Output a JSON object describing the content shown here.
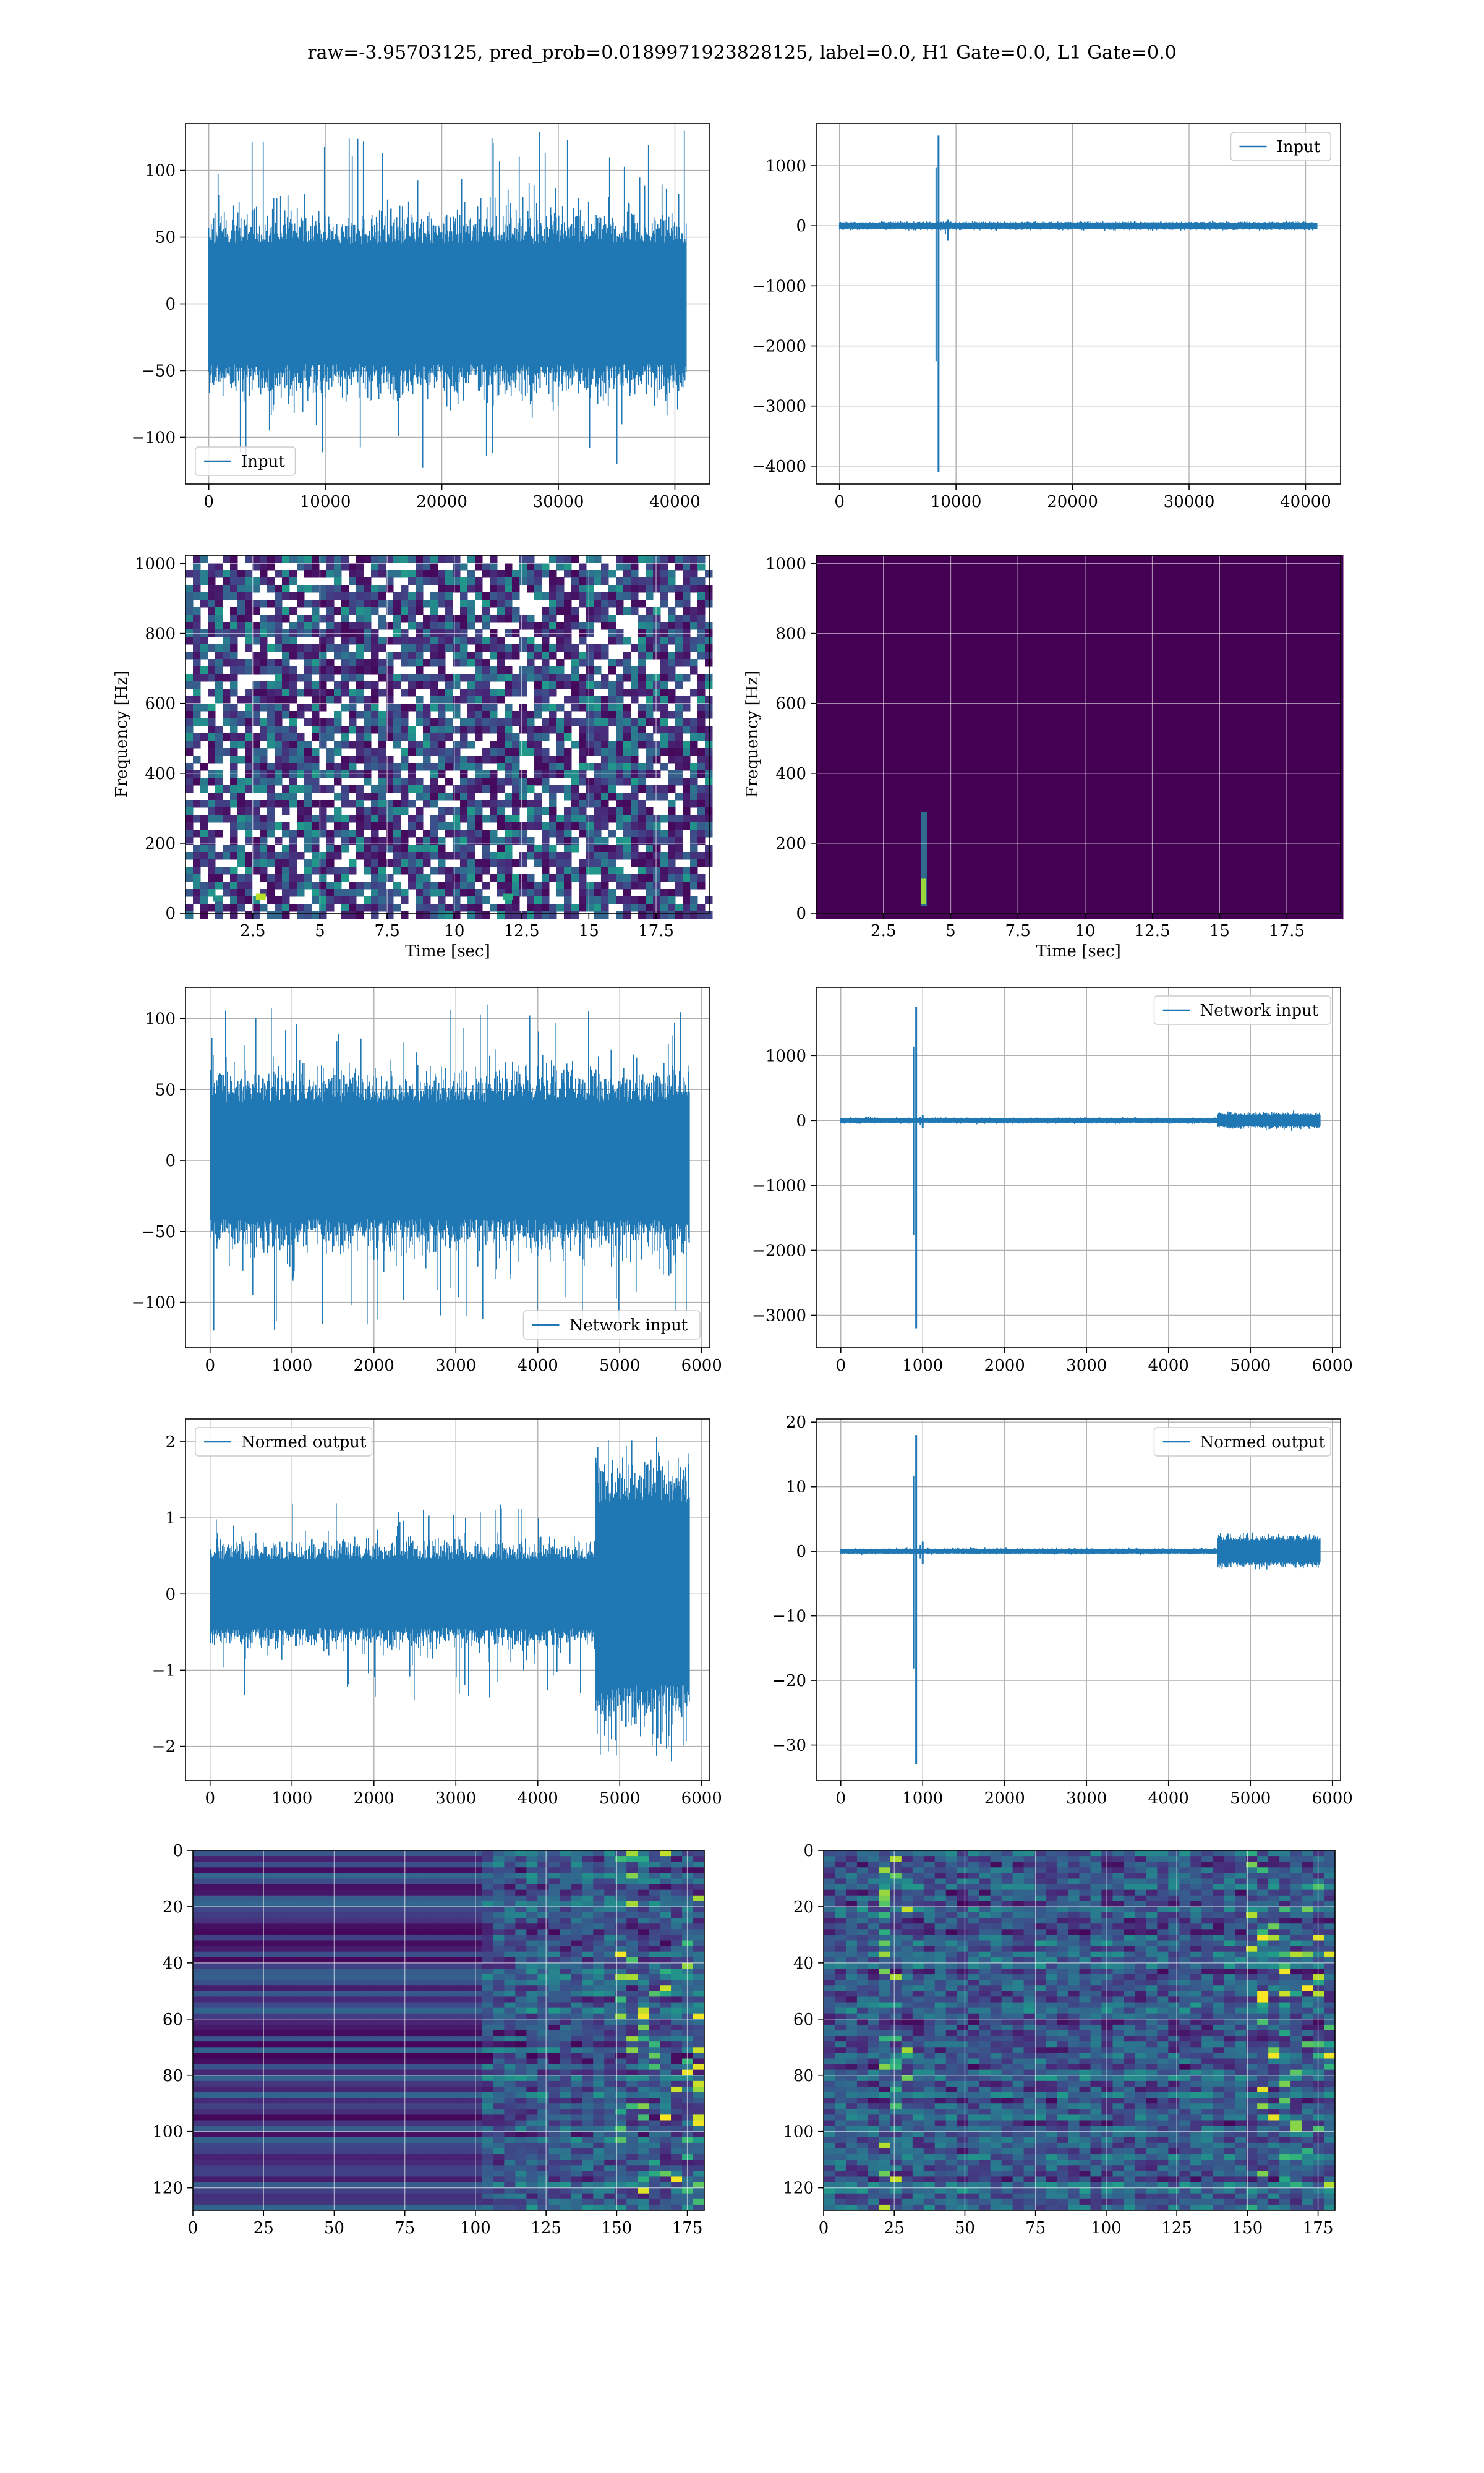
{
  "figure": {
    "title": "raw=-3.95703125, pred_prob=0.0189971923828125, label=0.0, H1 Gate=0.0, L1 Gate=0.0",
    "colors": {
      "line": "#1f77b4",
      "viridis_dark": "#440154",
      "viridis_mid": "#21918c",
      "viridis_bright": "#fde725",
      "grid": "#b0b0b0"
    }
  },
  "chart_data": [
    {
      "id": "input-h1",
      "type": "line",
      "title": "",
      "xlabel": "",
      "ylabel": "",
      "xlim": [
        -2000,
        43000
      ],
      "ylim": [
        -135,
        135
      ],
      "xticks": [
        0,
        10000,
        20000,
        30000,
        40000
      ],
      "yticks": [
        -100,
        -50,
        0,
        50,
        100
      ],
      "legend": {
        "label": "Input",
        "position": "lower-left"
      },
      "grid": true,
      "series": [
        {
          "name": "Input",
          "kind": "noise",
          "x_range": [
            0,
            40960
          ],
          "typical_amplitude": 60,
          "peak_max": 130,
          "peak_min": -125
        }
      ]
    },
    {
      "id": "input-l1",
      "type": "line",
      "title": "",
      "xlabel": "",
      "ylabel": "",
      "xlim": [
        -2000,
        43000
      ],
      "ylim": [
        -4300,
        1700
      ],
      "xticks": [
        0,
        10000,
        20000,
        30000,
        40000
      ],
      "yticks": [
        -4000,
        -3000,
        -2000,
        -1000,
        0,
        1000
      ],
      "legend": {
        "label": "Input",
        "position": "top-right"
      },
      "grid": true,
      "series": [
        {
          "name": "Input",
          "kind": "noise",
          "x_range": [
            0,
            40960
          ],
          "typical_amplitude": 60,
          "spikes": [
            {
              "x": 8500,
              "max": 1500,
              "min": -4100
            },
            {
              "x": 9300,
              "max": 100,
              "min": -250
            }
          ]
        }
      ]
    },
    {
      "id": "spectrogram-h1",
      "type": "heatmap",
      "title": "",
      "xlabel": "Time [sec]",
      "ylabel": "Frequency [Hz]",
      "xlim": [
        0,
        19.5
      ],
      "ylim": [
        0,
        1024
      ],
      "xticks": [
        2.5,
        5.0,
        7.5,
        10.0,
        12.5,
        15.0,
        17.5
      ],
      "yticks": [
        0,
        200,
        400,
        600,
        800,
        1000
      ],
      "colormap": "viridis",
      "grid": true,
      "description": "uniform low-power noise with scattered speckles",
      "hotspots": [
        {
          "t": 2.8,
          "f": 45,
          "level": 0.9
        },
        {
          "t": 12.0,
          "f": 45,
          "level": 0.6
        },
        {
          "t": 1.2,
          "f": 40,
          "level": 0.5
        }
      ]
    },
    {
      "id": "spectrogram-l1",
      "type": "heatmap",
      "title": "",
      "xlabel": "Time [sec]",
      "ylabel": "Frequency [Hz]",
      "xlim": [
        0,
        19.5
      ],
      "ylim": [
        0,
        1024
      ],
      "xticks": [
        2.5,
        5.0,
        7.5,
        10.0,
        12.5,
        15.0,
        17.5
      ],
      "yticks": [
        0,
        200,
        400,
        600,
        800,
        1000
      ],
      "colormap": "viridis",
      "grid": true,
      "description": "dark background with single bright glitch",
      "hotspots": [
        {
          "t": 4.0,
          "f": 40,
          "level": 1.0,
          "f_extent": 250
        }
      ]
    },
    {
      "id": "network-input-h1",
      "type": "line",
      "title": "",
      "xlabel": "",
      "ylabel": "",
      "xlim": [
        -300,
        6100
      ],
      "ylim": [
        -132,
        122
      ],
      "xticks": [
        0,
        1000,
        2000,
        3000,
        4000,
        5000,
        6000
      ],
      "yticks": [
        -100,
        -50,
        0,
        50,
        100
      ],
      "legend": {
        "label": "Network input",
        "position": "lower-right"
      },
      "grid": true,
      "series": [
        {
          "name": "Network input",
          "kind": "noise",
          "x_range": [
            0,
            5850
          ],
          "typical_amplitude": 55,
          "peak_max": 110,
          "peak_min": -120
        }
      ]
    },
    {
      "id": "network-input-l1",
      "type": "line",
      "title": "",
      "xlabel": "",
      "ylabel": "",
      "xlim": [
        -300,
        6100
      ],
      "ylim": [
        -3500,
        2050
      ],
      "xticks": [
        0,
        1000,
        2000,
        3000,
        4000,
        5000,
        6000
      ],
      "yticks": [
        -3000,
        -2000,
        -1000,
        0,
        1000
      ],
      "legend": {
        "label": "Network input",
        "position": "top-right"
      },
      "grid": true,
      "series": [
        {
          "name": "Network input",
          "kind": "noise",
          "x_range": [
            0,
            5850
          ],
          "typical_amplitude": 40,
          "spikes": [
            {
              "x": 920,
              "max": 1750,
              "min": -3200
            },
            {
              "x": 1000,
              "max": 80,
              "min": -120
            }
          ],
          "late_burst": {
            "x_range": [
              4600,
              5850
            ],
            "amplitude": 110
          }
        }
      ]
    },
    {
      "id": "normed-output-h1",
      "type": "line",
      "title": "",
      "xlabel": "",
      "ylabel": "",
      "xlim": [
        -300,
        6100
      ],
      "ylim": [
        -2.45,
        2.3
      ],
      "xticks": [
        0,
        1000,
        2000,
        3000,
        4000,
        5000,
        6000
      ],
      "yticks": [
        -2,
        -1,
        0,
        1,
        2
      ],
      "legend": {
        "label": "Normed output",
        "position": "top-left"
      },
      "grid": true,
      "series": [
        {
          "name": "Normed output",
          "kind": "noise",
          "x_range": [
            0,
            5850
          ],
          "typical_amplitude": 0.6,
          "peak_max": 1.2,
          "peak_min": -1.4,
          "late_burst": {
            "x_range": [
              4700,
              5850
            ],
            "amplitude": 1.6,
            "peak_max": 2.1,
            "peak_min": -2.2
          }
        }
      ]
    },
    {
      "id": "normed-output-l1",
      "type": "line",
      "title": "",
      "xlabel": "",
      "ylabel": "",
      "xlim": [
        -300,
        6100
      ],
      "ylim": [
        -35.5,
        20.5
      ],
      "xticks": [
        0,
        1000,
        2000,
        3000,
        4000,
        5000,
        6000
      ],
      "yticks": [
        -30,
        -20,
        -10,
        0,
        10,
        20
      ],
      "legend": {
        "label": "Normed output",
        "position": "top-right"
      },
      "grid": true,
      "series": [
        {
          "name": "Normed output",
          "kind": "noise",
          "x_range": [
            0,
            5850
          ],
          "typical_amplitude": 0.4,
          "spikes": [
            {
              "x": 920,
              "max": 18,
              "min": -33
            },
            {
              "x": 1000,
              "max": 1.5,
              "min": -2
            }
          ],
          "late_burst": {
            "x_range": [
              4600,
              5850
            ],
            "amplitude": 2.2
          }
        }
      ]
    },
    {
      "id": "features-h1",
      "type": "heatmap",
      "title": "",
      "xlabel": "",
      "ylabel": "",
      "xlim": [
        0,
        181
      ],
      "ylim": [
        128,
        0
      ],
      "xticks": [
        0,
        25,
        50,
        75,
        100,
        125,
        150,
        175
      ],
      "yticks": [
        0,
        20,
        40,
        60,
        80,
        100,
        120
      ],
      "colormap": "viridis",
      "grid": true,
      "description": "horizontal banded rows; left part (0-100) uniform bands, right part (100-181) textured with bright spots near 150-180"
    },
    {
      "id": "features-l1",
      "type": "heatmap",
      "title": "",
      "xlabel": "",
      "ylabel": "",
      "xlim": [
        0,
        181
      ],
      "ylim": [
        128,
        0
      ],
      "xticks": [
        0,
        25,
        50,
        75,
        100,
        125,
        150,
        175
      ],
      "yticks": [
        0,
        20,
        40,
        60,
        80,
        100,
        120
      ],
      "colormap": "viridis",
      "grid": true,
      "description": "textured rows throughout, bright streaks near column 25 and right edge"
    }
  ]
}
